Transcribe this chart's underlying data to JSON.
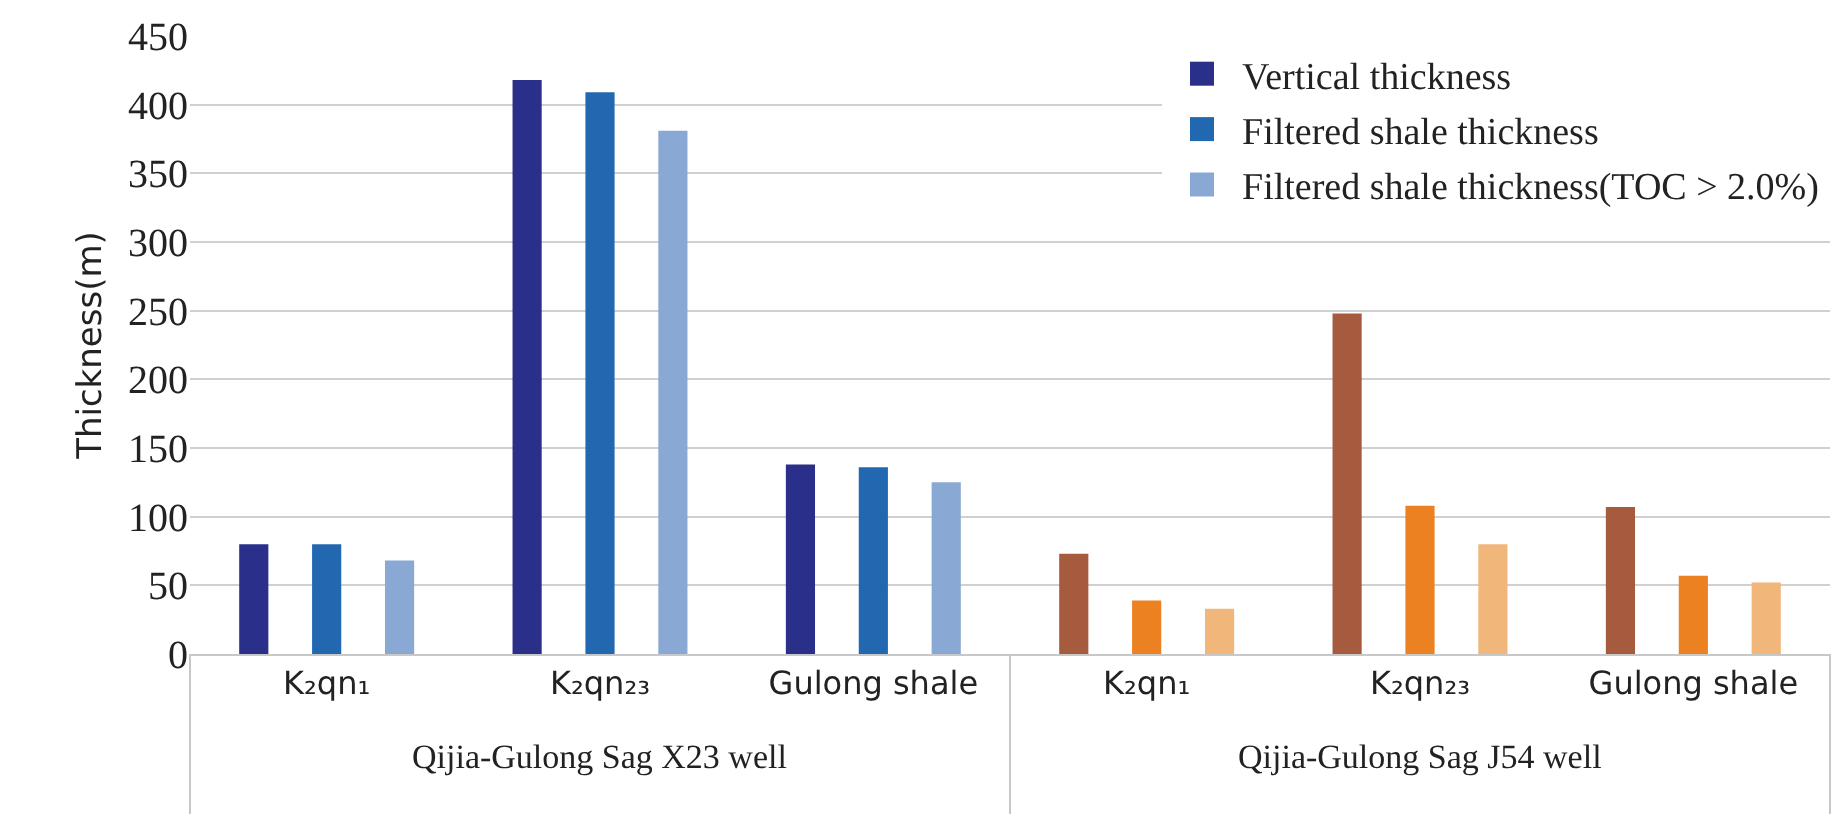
{
  "chart_data": {
    "type": "bar",
    "ylabel": "Thickness(m)",
    "categories": [
      "K₂qn₁",
      "K₂qn₂₃",
      "Gulong shale",
      "K₂qn₁",
      "K₂qn₂₃",
      "Gulong shale"
    ],
    "series": [
      {
        "name": "Vertical thickness",
        "colors": [
          "#2a2f8a",
          "#2a2f8a",
          "#2a2f8a",
          "#a65a3e",
          "#a65a3e",
          "#a65a3e"
        ],
        "values": [
          80,
          418,
          138,
          73,
          248,
          107
        ]
      },
      {
        "name": "Filtered shale thickness",
        "colors": [
          "#2268b0",
          "#2268b0",
          "#2268b0",
          "#ec8122",
          "#ec8122",
          "#ec8122"
        ],
        "values": [
          80,
          409,
          136,
          39,
          108,
          57
        ]
      },
      {
        "name": "Filtered shale thickness(TOC > 2.0%)",
        "colors": [
          "#8aa8d4",
          "#8aa8d4",
          "#8aa8d4",
          "#f0b67a",
          "#f0b67a",
          "#f0b67a"
        ],
        "values": [
          68,
          381,
          125,
          33,
          80,
          52
        ]
      }
    ],
    "ylim": [
      0,
      450
    ],
    "yticks": [
      0,
      50,
      100,
      150,
      200,
      250,
      300,
      350,
      400,
      450
    ],
    "grid": "y",
    "legend": "top right",
    "annotations": [
      "Qijia-Gulong Sag X23 well",
      "Qijia-Gulong Sag J54 well"
    ]
  }
}
